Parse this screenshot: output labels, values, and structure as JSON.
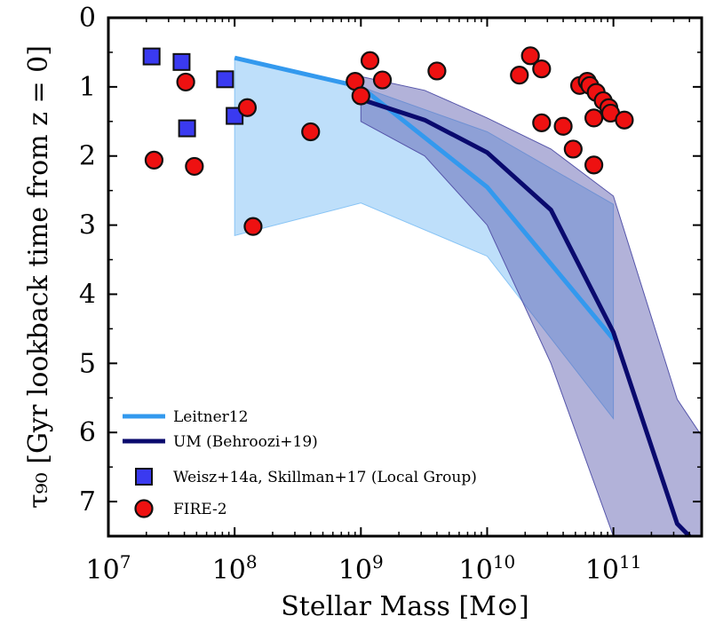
{
  "chart_data": {
    "type": "scatter",
    "title": "",
    "xlabel": "Stellar Mass [M⊙]",
    "ylabel": "τ₉₀ [Gyr lookback time from z = 0]",
    "xscale": "log",
    "xlim": [
      10000000,
      500000000000
    ],
    "ylim": [
      7.5,
      0
    ],
    "yinverted": true,
    "x_tick_values": [
      10000000,
      100000000,
      1000000000,
      10000000000,
      100000000000
    ],
    "x_tick_labels": [
      {
        "base": "10",
        "exp": "7"
      },
      {
        "base": "10",
        "exp": "8"
      },
      {
        "base": "10",
        "exp": "9"
      },
      {
        "base": "10",
        "exp": "10"
      },
      {
        "base": "10",
        "exp": "11"
      }
    ],
    "y_tick_values": [
      0,
      1,
      2,
      3,
      4,
      5,
      6,
      7
    ],
    "y_tick_labels": [
      "0",
      "1",
      "2",
      "3",
      "4",
      "5",
      "6",
      "7"
    ],
    "colors": {
      "leitner_line": "#3399ee",
      "leitner_fill": "#88c4f5",
      "um_line": "#0a0a6e",
      "um_fill": "#5555aa",
      "weisz_marker": "#3a3af0",
      "fire_marker": "#ee1111",
      "edge": "#111111"
    },
    "legend": {
      "placement": "bottom-left",
      "entries": [
        {
          "label": "Leitner12",
          "kind": "line",
          "series": "leitner"
        },
        {
          "label": "UM (Behroozi+19)",
          "kind": "line",
          "series": "um"
        },
        {
          "label": "Weisz+14a, Skillman+17 (Local Group)",
          "kind": "square",
          "series": "weisz"
        },
        {
          "label": "FIRE-2",
          "kind": "circle",
          "series": "fire"
        }
      ]
    },
    "series": {
      "leitner": {
        "name": "Leitner12",
        "x": [
          100000000,
          1000000000,
          10000000000,
          100000000000
        ],
        "y": [
          0.58,
          1.0,
          2.45,
          4.65
        ],
        "band_lower": [
          0.58,
          1.0,
          1.65,
          2.7
        ],
        "band_upper": [
          3.15,
          2.68,
          3.45,
          5.8
        ]
      },
      "um": {
        "name": "UM (Behroozi+19)",
        "x": [
          1000000000,
          3200000000,
          10000000000,
          32000000000,
          100000000000,
          320000000000,
          400000000000
        ],
        "y": [
          1.18,
          1.48,
          1.95,
          2.78,
          4.55,
          7.32,
          7.5
        ],
        "band_x": [
          1000000000,
          3200000000,
          10000000000,
          32000000000,
          100000000000,
          320000000000,
          500000000000
        ],
        "band_lower": [
          0.85,
          1.05,
          1.45,
          1.9,
          2.58,
          5.52,
          6.05
        ],
        "band_upper": [
          1.5,
          2.0,
          3.0,
          5.0,
          7.5,
          7.5,
          7.5
        ]
      },
      "weisz": {
        "name": "Weisz+14a, Skillman+17 (Local Group)",
        "points": [
          {
            "x": 22000000,
            "y": 0.56
          },
          {
            "x": 38000000,
            "y": 0.64
          },
          {
            "x": 84000000,
            "y": 0.89
          },
          {
            "x": 100000000,
            "y": 1.42
          },
          {
            "x": 42000000,
            "y": 1.6
          }
        ]
      },
      "fire": {
        "name": "FIRE-2",
        "points": [
          {
            "x": 23000000,
            "y": 2.06
          },
          {
            "x": 41000000,
            "y": 0.93
          },
          {
            "x": 48000000,
            "y": 2.15
          },
          {
            "x": 126000000,
            "y": 1.3
          },
          {
            "x": 140000000,
            "y": 3.02
          },
          {
            "x": 400000000,
            "y": 1.65
          },
          {
            "x": 900000000,
            "y": 0.92
          },
          {
            "x": 1000000000,
            "y": 1.13
          },
          {
            "x": 1180000000,
            "y": 0.62
          },
          {
            "x": 1480000000,
            "y": 0.9
          },
          {
            "x": 4000000000,
            "y": 0.77
          },
          {
            "x": 18000000000,
            "y": 0.83
          },
          {
            "x": 22000000000,
            "y": 0.55
          },
          {
            "x": 27000000000,
            "y": 0.74
          },
          {
            "x": 27000000000,
            "y": 1.52
          },
          {
            "x": 40000000000,
            "y": 1.57
          },
          {
            "x": 48000000000,
            "y": 1.9
          },
          {
            "x": 54000000000,
            "y": 0.98
          },
          {
            "x": 62000000000,
            "y": 0.92
          },
          {
            "x": 65000000000,
            "y": 0.98
          },
          {
            "x": 73000000000,
            "y": 1.08
          },
          {
            "x": 83000000000,
            "y": 1.2
          },
          {
            "x": 92000000000,
            "y": 1.3
          },
          {
            "x": 70000000000,
            "y": 1.45
          },
          {
            "x": 95000000000,
            "y": 1.38
          },
          {
            "x": 122000000000,
            "y": 1.48
          },
          {
            "x": 70000000000,
            "y": 2.13
          }
        ]
      }
    }
  }
}
